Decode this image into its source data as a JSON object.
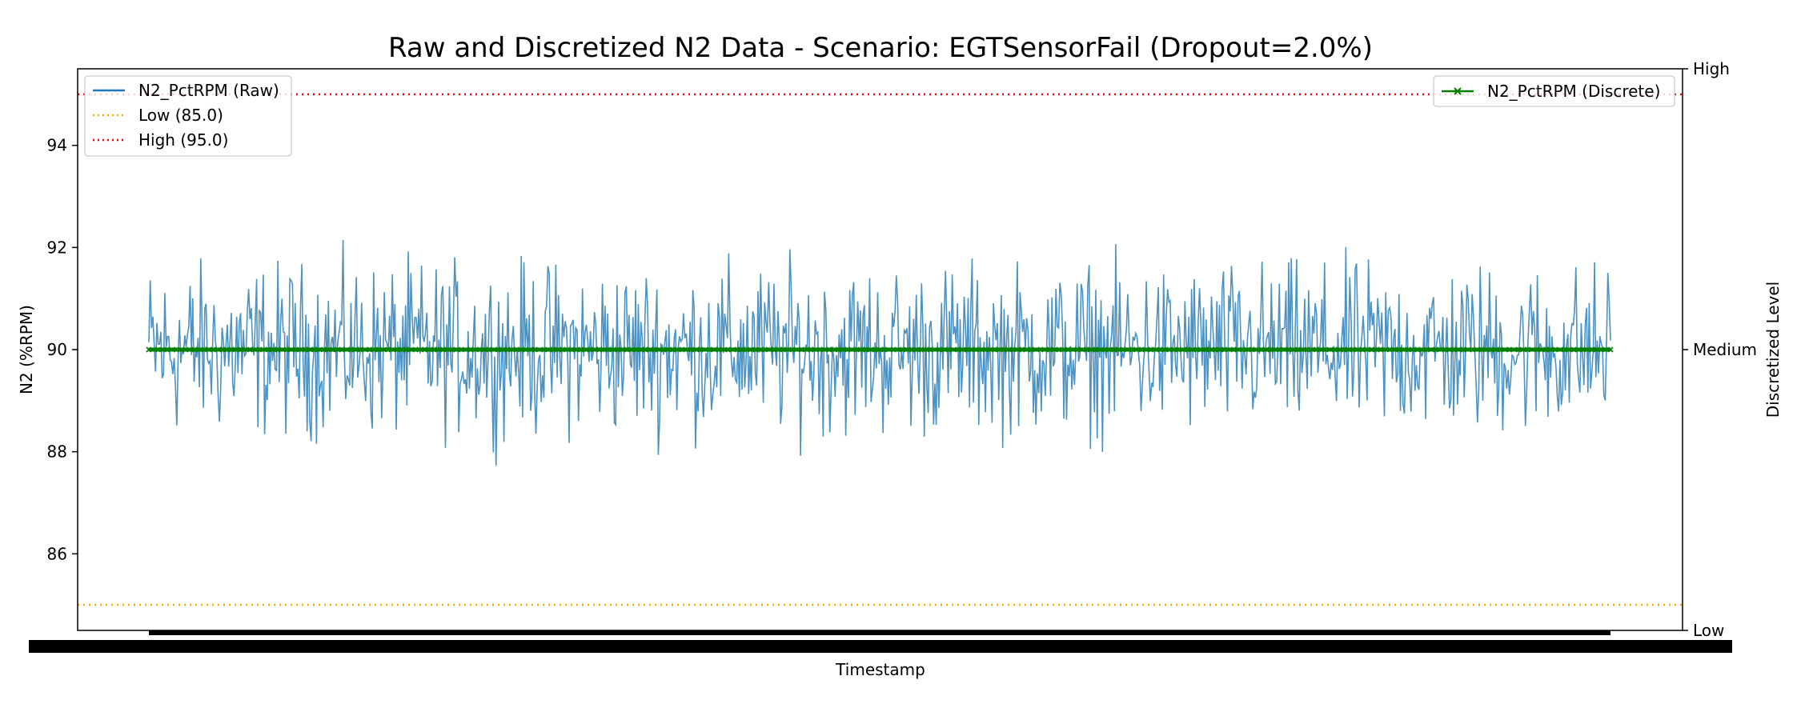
{
  "chart_data": {
    "type": "line",
    "title": "Raw and Discretized N2 Data - Scenario: EGTSensorFail (Dropout=2.0%)",
    "xlabel": "Timestamp",
    "ylabel": "N2 (%RPM)",
    "ylabel_right": "Discretized Level",
    "ylim": [
      84.5,
      95.5
    ],
    "yticks": [
      86,
      88,
      90,
      92,
      94
    ],
    "right_ticks": [
      {
        "label": "Low",
        "value": 84.5
      },
      {
        "label": "Medium",
        "value": 90
      },
      {
        "label": "High",
        "value": 95.5
      }
    ],
    "x_tick_labels_overlapping": true,
    "grid": false,
    "series": [
      {
        "name": "N2_PctRPM (Raw)",
        "color": "#1f77b4",
        "style": "solid",
        "description_values": "noisy signal centered at 90 with amplitude about ±1.5",
        "sample_points": [
          [
            0,
            89.6
          ],
          [
            0.05,
            90.7
          ],
          [
            0.1,
            89.2
          ],
          [
            0.15,
            91.3
          ],
          [
            0.2,
            90.1
          ],
          [
            0.25,
            89.0
          ],
          [
            0.3,
            90.9
          ],
          [
            0.35,
            88.6
          ],
          [
            0.4,
            91.2
          ],
          [
            0.45,
            89.4
          ],
          [
            0.5,
            90.5
          ],
          [
            0.55,
            88.4
          ],
          [
            0.6,
            90.8
          ],
          [
            0.65,
            89.3
          ],
          [
            0.7,
            91.4
          ],
          [
            0.75,
            88.6
          ],
          [
            0.8,
            90.9
          ],
          [
            0.85,
            89.1
          ],
          [
            0.9,
            91.1
          ],
          [
            0.95,
            88.6
          ],
          [
            1.0,
            90.3
          ]
        ]
      },
      {
        "name": "Low (85.0)",
        "color": "#ffa500",
        "style": "dotted",
        "value": 85.0
      },
      {
        "name": "High (95.0)",
        "color": "#ff0000",
        "style": "dotted",
        "value": 95.0
      },
      {
        "name": "N2_PctRPM (Discrete)",
        "color": "#008000",
        "style": "solid-with-x-markers",
        "axis": "right",
        "value": "Medium"
      }
    ],
    "legend_left": {
      "placement": "top-left",
      "items": [
        "N2_PctRPM (Raw)",
        "Low (85.0)",
        "High (95.0)"
      ]
    },
    "legend_right": {
      "placement": "top-right",
      "items": [
        "N2_PctRPM (Discrete)"
      ]
    },
    "colors": {
      "raw": "#1f77b4",
      "low": "#ffa500",
      "high": "#ff0000",
      "discrete": "#008000"
    }
  }
}
